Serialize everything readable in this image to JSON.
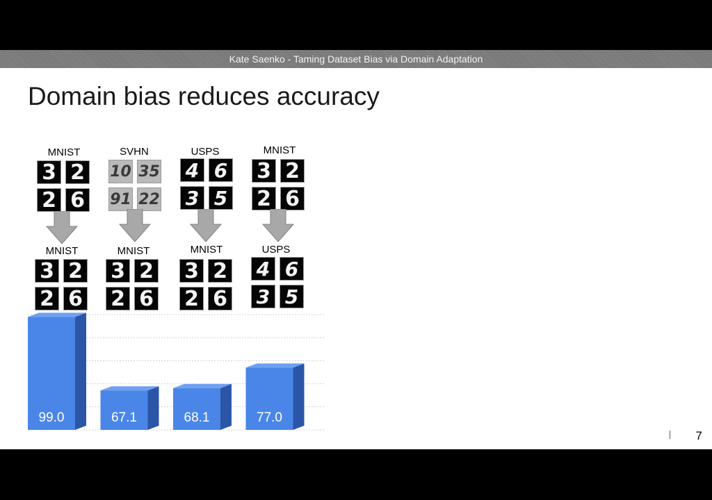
{
  "header": {
    "text": "Kate Saenko - Taming Dataset Bias via Domain Adaptation"
  },
  "slide": {
    "title": "Domain bias reduces accuracy",
    "page_number": "7"
  },
  "domains": [
    {
      "source": "MNIST",
      "target": "MNIST",
      "source_digits": [
        "3",
        "2",
        "2",
        "6"
      ],
      "target_digits": [
        "3",
        "2",
        "2",
        "6"
      ]
    },
    {
      "source": "SVHN",
      "target": "MNIST",
      "source_digits": [
        "10",
        "35",
        "91",
        "22"
      ],
      "target_digits": [
        "3",
        "2",
        "2",
        "6"
      ]
    },
    {
      "source": "USPS",
      "target": "MNIST",
      "source_digits": [
        "4",
        "6",
        "3",
        "5"
      ],
      "target_digits": [
        "3",
        "2",
        "2",
        "6"
      ]
    },
    {
      "source": "MNIST",
      "target": "USPS",
      "source_digits": [
        "3",
        "2",
        "2",
        "6"
      ],
      "target_digits": [
        "4",
        "6",
        "3",
        "5"
      ]
    }
  ],
  "chart_data": {
    "type": "bar",
    "categories": [
      "MNIST→MNIST",
      "SVHN→MNIST",
      "USPS→MNIST",
      "MNIST→USPS"
    ],
    "values": [
      99.0,
      67.1,
      68.1,
      77.0
    ],
    "value_labels": [
      "99.0",
      "67.1",
      "68.1",
      "77.0"
    ],
    "ylim": [
      50,
      100
    ],
    "grid": true,
    "bar_color": "#4a86e8",
    "bar_side_color": "#2b56a8"
  }
}
